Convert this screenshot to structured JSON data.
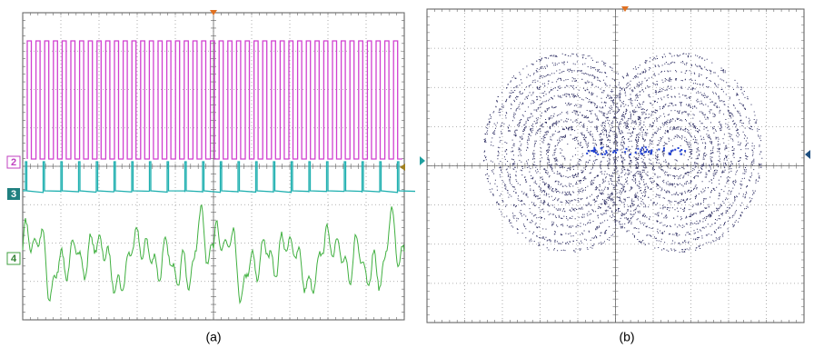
{
  "panels": [
    {
      "caption": "(a)",
      "channels": [
        "2",
        "3",
        "4"
      ]
    },
    {
      "caption": "(b)"
    }
  ]
}
